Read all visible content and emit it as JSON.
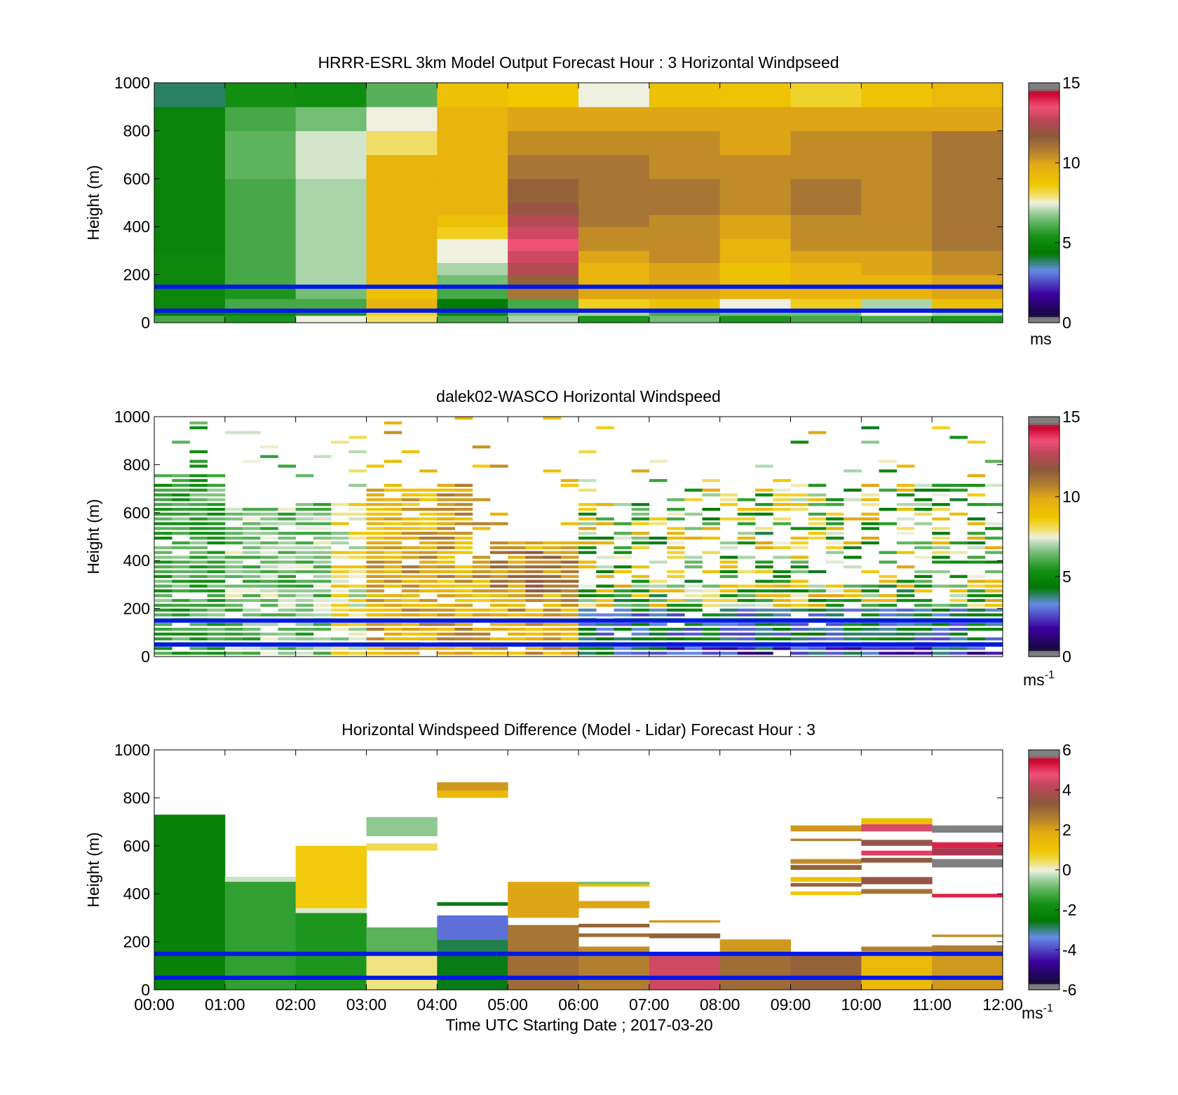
{
  "figure": {
    "xlabel": "Time UTC  Starting Date ; 2017-03-20",
    "x_ticks": [
      "00:00",
      "01:00",
      "02:00",
      "03:00",
      "04:00",
      "05:00",
      "06:00",
      "07:00",
      "08:00",
      "09:00",
      "10:00",
      "11:00",
      "12:00"
    ]
  },
  "chart_data": [
    {
      "type": "heatmap",
      "title": "HRRR-ESRL 3km Model Output   Forecast Hour : 3 Horizontal Windpseed",
      "ylabel": "Height (m)",
      "y_ticks": [
        "0",
        "200",
        "400",
        "600",
        "800",
        "1000"
      ],
      "ylim": [
        0,
        1000
      ],
      "xlim": [
        "00:00",
        "12:00"
      ],
      "colorbar": {
        "min": 0,
        "max": 15,
        "ticks": [
          "0",
          "5",
          "10",
          "15"
        ],
        "unit_label": "ms"
      },
      "blue_lines_m": [
        50,
        150
      ],
      "columns_hours": [
        0,
        1,
        2,
        3,
        4,
        5,
        6,
        7,
        8,
        9,
        10,
        11
      ],
      "levels_m": [
        0,
        30,
        60,
        100,
        150,
        200,
        250,
        300,
        350,
        400,
        450,
        500,
        600,
        700,
        800,
        900,
        1000
      ],
      "values": [
        [
          6,
          5.5,
          7.5,
          8,
          6,
          7,
          5.5,
          6.5,
          5.5,
          6,
          6,
          5.5
        ],
        [
          4.5,
          5,
          5.5,
          8.5,
          5,
          6.5,
          7,
          6,
          6.5,
          6.5,
          7.5,
          7
        ],
        [
          5,
          6,
          6,
          9.5,
          4.5,
          6,
          8.5,
          9,
          7.5,
          8.5,
          7,
          9
        ],
        [
          5,
          5.5,
          6.5,
          9,
          6,
          11,
          10,
          10,
          9.5,
          9.5,
          9.5,
          10
        ],
        [
          5,
          6,
          7,
          9.5,
          6.5,
          11.5,
          9.5,
          10,
          9,
          9.5,
          9.5,
          10
        ],
        [
          5,
          6,
          7,
          9.5,
          7,
          12.5,
          9.5,
          10,
          9,
          9.5,
          10,
          10.5
        ],
        [
          5,
          6,
          7,
          9.5,
          7.5,
          13,
          10,
          10.5,
          9.5,
          10,
          10,
          10.5
        ],
        [
          4.8,
          6,
          7,
          9.5,
          7.5,
          13.5,
          10.5,
          10.5,
          9.5,
          10.5,
          10.5,
          11
        ],
        [
          4.8,
          6,
          7,
          9.5,
          8.5,
          13,
          10.5,
          10.5,
          10,
          10.5,
          10.5,
          11
        ],
        [
          4.8,
          6,
          7,
          9.5,
          9,
          12.5,
          11,
          10.5,
          10,
          10.5,
          10.5,
          11
        ],
        [
          4.8,
          6,
          7,
          9.5,
          9.5,
          12,
          11,
          11,
          10.5,
          11,
          10.5,
          11
        ],
        [
          4.8,
          6,
          7,
          9.5,
          9.5,
          11.5,
          11,
          11,
          10.5,
          11,
          10.5,
          11
        ],
        [
          4.8,
          6.3,
          7.3,
          9.5,
          9.5,
          11,
          11,
          10.5,
          10.5,
          10.5,
          10.5,
          11
        ],
        [
          4.8,
          6.3,
          7.3,
          8,
          9.5,
          10.5,
          10.5,
          10.5,
          10,
          10.5,
          10.5,
          11
        ],
        [
          4.8,
          6,
          6.5,
          7.5,
          9.5,
          10,
          10,
          10,
          10,
          10,
          10,
          10
        ],
        [
          3.9,
          5.3,
          5.2,
          6.2,
          9,
          8.7,
          7.5,
          9,
          8.9,
          8.4,
          8.9,
          9.3
        ]
      ]
    },
    {
      "type": "heatmap",
      "title": "dalek02-WASCO  Horizontal Windspeed",
      "ylabel": "Height (m)",
      "y_ticks": [
        "0",
        "200",
        "400",
        "600",
        "800",
        "1000"
      ],
      "ylim": [
        0,
        1000
      ],
      "xlim": [
        "00:00",
        "12:00"
      ],
      "colorbar": {
        "min": 0,
        "max": 15,
        "ticks": [
          "0",
          "5",
          "10",
          "15"
        ],
        "unit_label": "ms-1"
      },
      "blue_lines_m": [
        50,
        150
      ],
      "profile_interval_min": 15,
      "gate_m": 20
    },
    {
      "type": "heatmap",
      "title": "Horizontal Windspeed Difference (Model - Lidar) Forecast Hour : 3",
      "ylabel": "Height (m)",
      "y_ticks": [
        "0",
        "200",
        "400",
        "600",
        "800",
        "1000"
      ],
      "ylim": [
        0,
        1000
      ],
      "xlim": [
        "00:00",
        "12:00"
      ],
      "colorbar": {
        "min": -6,
        "max": 6,
        "ticks": [
          "-6",
          "-4",
          "-2",
          "0",
          "2",
          "4",
          "6"
        ],
        "unit_label": "ms-1"
      },
      "blue_lines_m": [
        50,
        150
      ],
      "segments": [
        {
          "col": 0,
          "y0": 0,
          "y1": 730,
          "v": -2.2
        },
        {
          "col": 1,
          "y0": 0,
          "y1": 470,
          "v": -1.4
        },
        {
          "col": 1,
          "y0": 450,
          "y1": 470,
          "v": -0.2
        },
        {
          "col": 2,
          "y0": 0,
          "y1": 320,
          "v": -1.6
        },
        {
          "col": 2,
          "y0": 320,
          "y1": 340,
          "v": -0.1
        },
        {
          "col": 2,
          "y0": 340,
          "y1": 600,
          "v": 0.9
        },
        {
          "col": 3,
          "y0": 0,
          "y1": 150,
          "v": 0.3
        },
        {
          "col": 3,
          "y0": 150,
          "y1": 260,
          "v": -1.0
        },
        {
          "col": 3,
          "y0": 580,
          "y1": 610,
          "v": 0.5
        },
        {
          "col": 3,
          "y0": 640,
          "y1": 720,
          "v": -0.6
        },
        {
          "col": 4,
          "y0": 0,
          "y1": 150,
          "v": -2.6
        },
        {
          "col": 4,
          "y0": 150,
          "y1": 210,
          "v": -2.8
        },
        {
          "col": 4,
          "y0": 210,
          "y1": 310,
          "v": -3.6
        },
        {
          "col": 4,
          "y0": 350,
          "y1": 365,
          "v": -2.6
        },
        {
          "col": 4,
          "y0": 800,
          "y1": 830,
          "v": 1.4
        },
        {
          "col": 4,
          "y0": 830,
          "y1": 865,
          "v": 2.2
        },
        {
          "col": 5,
          "y0": 0,
          "y1": 150,
          "v": 3.0
        },
        {
          "col": 5,
          "y0": 150,
          "y1": 270,
          "v": 2.8
        },
        {
          "col": 5,
          "y0": 300,
          "y1": 450,
          "v": 2.0
        },
        {
          "col": 6,
          "y0": 0,
          "y1": 150,
          "v": 2.6
        },
        {
          "col": 6,
          "y0": 150,
          "y1": 180,
          "v": 2.4
        },
        {
          "col": 6,
          "y0": 220,
          "y1": 235,
          "v": 3.0
        },
        {
          "col": 6,
          "y0": 260,
          "y1": 275,
          "v": 3.2
        },
        {
          "col": 6,
          "y0": 340,
          "y1": 370,
          "v": 2.0
        },
        {
          "col": 6,
          "y0": 430,
          "y1": 440,
          "v": 1.2
        },
        {
          "col": 6,
          "y0": 440,
          "y1": 450,
          "v": -0.8
        },
        {
          "col": 7,
          "y0": 0,
          "y1": 150,
          "v": 4.4
        },
        {
          "col": 7,
          "y0": 215,
          "y1": 235,
          "v": 3.2
        },
        {
          "col": 7,
          "y0": 280,
          "y1": 290,
          "v": 2.2
        },
        {
          "col": 8,
          "y0": 0,
          "y1": 150,
          "v": 3.0
        },
        {
          "col": 8,
          "y0": 150,
          "y1": 210,
          "v": 2.2
        },
        {
          "col": 9,
          "y0": 0,
          "y1": 150,
          "v": 3.2
        },
        {
          "col": 9,
          "y0": 395,
          "y1": 410,
          "v": 1.0
        },
        {
          "col": 9,
          "y0": 430,
          "y1": 445,
          "v": 3.2
        },
        {
          "col": 9,
          "y0": 450,
          "y1": 470,
          "v": 1.2
        },
        {
          "col": 9,
          "y0": 500,
          "y1": 520,
          "v": 3.2
        },
        {
          "col": 9,
          "y0": 525,
          "y1": 545,
          "v": 2.4
        },
        {
          "col": 9,
          "y0": 620,
          "y1": 630,
          "v": 2.6
        },
        {
          "col": 9,
          "y0": 660,
          "y1": 685,
          "v": 2.2
        },
        {
          "col": 10,
          "y0": 0,
          "y1": 150,
          "v": 1.4
        },
        {
          "col": 10,
          "y0": 160,
          "y1": 180,
          "v": 2.6
        },
        {
          "col": 10,
          "y0": 400,
          "y1": 420,
          "v": 2.8
        },
        {
          "col": 10,
          "y0": 440,
          "y1": 470,
          "v": 3.6
        },
        {
          "col": 10,
          "y0": 530,
          "y1": 550,
          "v": 3.4
        },
        {
          "col": 10,
          "y0": 560,
          "y1": 580,
          "v": 5.0
        },
        {
          "col": 10,
          "y0": 600,
          "y1": 625,
          "v": 3.6
        },
        {
          "col": 10,
          "y0": 660,
          "y1": 690,
          "v": 4.5
        },
        {
          "col": 10,
          "y0": 690,
          "y1": 715,
          "v": 1.2
        },
        {
          "col": 11,
          "y0": 0,
          "y1": 150,
          "v": 2.2
        },
        {
          "col": 11,
          "y0": 150,
          "y1": 185,
          "v": 2.6
        },
        {
          "col": 11,
          "y0": 220,
          "y1": 230,
          "v": 2.4
        },
        {
          "col": 11,
          "y0": 385,
          "y1": 400,
          "v": 5.2
        },
        {
          "col": 11,
          "y0": 510,
          "y1": 545,
          "v": 6.5
        },
        {
          "col": 11,
          "y0": 560,
          "y1": 590,
          "v": 5.6
        },
        {
          "col": 11,
          "y0": 590,
          "y1": 615,
          "v": 5.2
        },
        {
          "col": 11,
          "y0": 655,
          "y1": 685,
          "v": 6.5
        }
      ]
    }
  ]
}
